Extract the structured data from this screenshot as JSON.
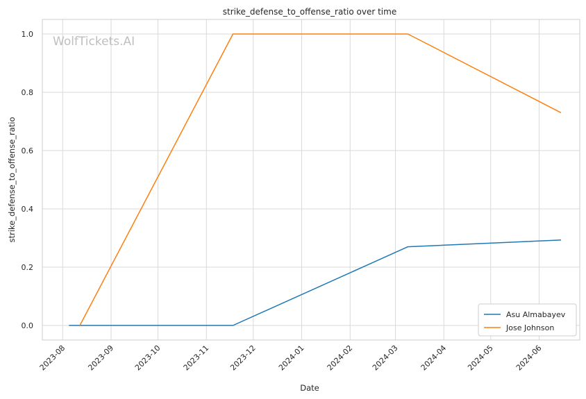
{
  "chart_data": {
    "type": "line",
    "title": "strike_defense_to_offense_ratio over time",
    "xlabel": "Date",
    "ylabel": "strike_defense_to_offense_ratio",
    "watermark": "WolfTickets.AI",
    "x_ticks": [
      "2023-08",
      "2023-09",
      "2023-10",
      "2023-11",
      "2023-12",
      "2024-01",
      "2024-02",
      "2024-03",
      "2024-04",
      "2024-05",
      "2024-06"
    ],
    "y_ticks": [
      "0.0",
      "0.2",
      "0.4",
      "0.6",
      "0.8",
      "1.0"
    ],
    "xlim": [
      "2023-07-19",
      "2024-06-27"
    ],
    "ylim": [
      -0.05,
      1.05
    ],
    "grid": true,
    "legend_position": "bottom-right",
    "series": [
      {
        "name": "Asu Almabayev",
        "color": "#1f77b4",
        "points": [
          {
            "x": "2023-08-05",
            "y": 0.0
          },
          {
            "x": "2023-11-18",
            "y": 0.0
          },
          {
            "x": "2024-03-09",
            "y": 0.27
          },
          {
            "x": "2024-06-15",
            "y": 0.293
          }
        ]
      },
      {
        "name": "Jose Johnson",
        "color": "#ff7f0e",
        "points": [
          {
            "x": "2023-08-12",
            "y": 0.0
          },
          {
            "x": "2023-11-18",
            "y": 1.0
          },
          {
            "x": "2024-03-09",
            "y": 1.0
          },
          {
            "x": "2024-06-15",
            "y": 0.73
          }
        ]
      }
    ]
  }
}
